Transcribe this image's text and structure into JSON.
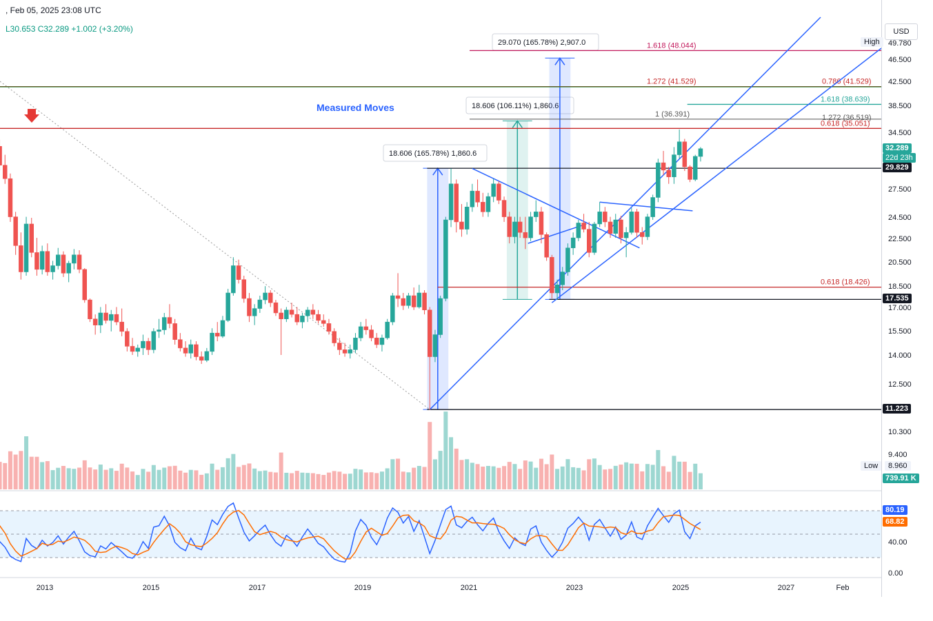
{
  "header": {
    "datetime": ", Feb 05, 2025 23:08 UTC",
    "ohlc": "L30.653  C32.289  +1.002 (+3.20%)"
  },
  "currency_button": "USD",
  "colors": {
    "up": "#26a69a",
    "down": "#ef5350",
    "blue": "#2962ff",
    "red_line": "#c62828",
    "green_line": "#2e7d32",
    "magenta": "#c2185b",
    "teal": "#26a69a",
    "rsi": "#2962ff",
    "rsi_ma": "#ff6d00"
  },
  "chart_data": {
    "type": "candlestick",
    "timeframe": "weekly",
    "title": "Measured Moves",
    "price_axis": {
      "scale": "log",
      "ticks": [
        "49.780",
        "46.500",
        "42.500",
        "38.500",
        "34.500",
        "27.500",
        "24.500",
        "22.500",
        "20.500",
        "18.500",
        "17.000",
        "15.500",
        "14.000",
        "12.500",
        "10.300",
        "9.400"
      ]
    },
    "time_axis": {
      "ticks": [
        "2013",
        "2015",
        "2017",
        "2019",
        "2021",
        "2023",
        "2025",
        "2027",
        "Feb"
      ]
    },
    "price_badges": [
      {
        "label": "32.289",
        "sub": "22d 23h",
        "price": 32.289,
        "color": "#26a69a"
      },
      {
        "label": "29.829",
        "price": 29.829,
        "color": "#131722"
      },
      {
        "label": "17.535",
        "price": 17.535,
        "color": "#131722"
      },
      {
        "label": "11.223",
        "price": 11.223,
        "color": "#131722"
      }
    ],
    "high_label": "High",
    "low_label": "Low",
    "low_value": "8.960",
    "volume_badge": "739.91 K",
    "horizontal_levels": [
      {
        "price": 48.044,
        "label": "1.618 (48.044)",
        "color": "#c2185b",
        "from_year": 2021.0
      },
      {
        "price": 41.529,
        "label": "1.272 (41.529)",
        "label2": "0.786 (41.529)",
        "color": "#c62828",
        "from_year": 2011.3
      },
      {
        "price": 42.1,
        "label": "",
        "color": "#2e7d32",
        "from_year": 2011.3
      },
      {
        "price": 38.639,
        "label": "1.618 (38.639)",
        "color": "#26a69a",
        "from_year": 2025.1
      },
      {
        "price": 36.391,
        "label": "1 (36.391)",
        "label2": "1.272 (36.519)",
        "color": "#555555",
        "from_year": 2021.0
      },
      {
        "price": 35.051,
        "label": "0.618 (35.051)",
        "color": "#c62828",
        "from_year": 2011.3
      },
      {
        "price": 29.829,
        "label": "",
        "color": "#131722",
        "from_year": 2020.2
      },
      {
        "price": 18.426,
        "label": "0.618 (18.426)",
        "color": "#c62828",
        "from_year": 2020.4
      },
      {
        "price": 17.535,
        "label": "",
        "color": "#131722",
        "from_year": 2022.5
      },
      {
        "price": 11.223,
        "label": "",
        "color": "#131722",
        "from_year": 2020.2
      }
    ],
    "measured_moves": [
      {
        "label": "18.606 (165.78%) 1,860.6",
        "x0": 2020.2,
        "x1": 2020.6,
        "from": 11.223,
        "to": 29.829,
        "color": "#2962ff"
      },
      {
        "label": "18.606 (106.11%) 1,860.6",
        "x0": 2021.7,
        "x1": 2022.1,
        "from": 17.535,
        "to": 36.141,
        "color": "#26a69a"
      },
      {
        "label": "29.070 (165.78%) 2,907.0",
        "x0": 2022.5,
        "x1": 2022.9,
        "from": 17.535,
        "to": 46.605,
        "color": "#2962ff"
      }
    ],
    "candles": [
      {
        "t": 2011.35,
        "o": 34.0,
        "h": 35.2,
        "l": 31.5,
        "c": 32.4
      },
      {
        "t": 2011.45,
        "o": 32.4,
        "h": 33.0,
        "l": 29.5,
        "c": 30.2
      },
      {
        "t": 2011.55,
        "o": 30.2,
        "h": 31.0,
        "l": 27.0,
        "c": 28.0
      },
      {
        "t": 2011.65,
        "o": 28.0,
        "h": 29.5,
        "l": 26.0,
        "c": 27.2
      },
      {
        "t": 2011.75,
        "o": 27.2,
        "h": 30.5,
        "l": 26.8,
        "c": 30.0
      },
      {
        "t": 2011.85,
        "o": 30.0,
        "h": 34.0,
        "l": 29.5,
        "c": 33.5
      },
      {
        "t": 2011.95,
        "o": 33.5,
        "h": 35.5,
        "l": 32.5,
        "c": 34.8
      },
      {
        "t": 2012.05,
        "o": 34.8,
        "h": 35.6,
        "l": 32.0,
        "c": 32.6
      },
      {
        "t": 2012.15,
        "o": 32.6,
        "h": 33.5,
        "l": 29.5,
        "c": 30.2
      },
      {
        "t": 2012.25,
        "o": 30.2,
        "h": 31.5,
        "l": 28.0,
        "c": 28.6
      },
      {
        "t": 2012.35,
        "o": 28.6,
        "h": 29.2,
        "l": 24.0,
        "c": 24.5
      },
      {
        "t": 2012.45,
        "o": 24.5,
        "h": 25.0,
        "l": 21.0,
        "c": 21.8
      },
      {
        "t": 2012.55,
        "o": 21.8,
        "h": 23.0,
        "l": 19.0,
        "c": 19.6
      },
      {
        "t": 2012.65,
        "o": 19.6,
        "h": 24.5,
        "l": 19.3,
        "c": 23.8
      },
      {
        "t": 2012.75,
        "o": 23.8,
        "h": 24.4,
        "l": 20.8,
        "c": 21.2
      },
      {
        "t": 2012.85,
        "o": 21.2,
        "h": 22.5,
        "l": 19.3,
        "c": 19.8
      },
      {
        "t": 2012.95,
        "o": 19.8,
        "h": 21.8,
        "l": 19.4,
        "c": 21.3
      },
      {
        "t": 2013.05,
        "o": 21.3,
        "h": 22.0,
        "l": 19.3,
        "c": 19.6
      },
      {
        "t": 2013.15,
        "o": 19.6,
        "h": 20.5,
        "l": 19.0,
        "c": 20.1
      },
      {
        "t": 2013.25,
        "o": 20.1,
        "h": 21.6,
        "l": 19.8,
        "c": 21.0
      },
      {
        "t": 2013.35,
        "o": 21.0,
        "h": 21.3,
        "l": 19.2,
        "c": 19.5
      },
      {
        "t": 2013.45,
        "o": 19.5,
        "h": 20.5,
        "l": 18.8,
        "c": 20.3
      },
      {
        "t": 2013.55,
        "o": 20.3,
        "h": 21.5,
        "l": 19.8,
        "c": 21.0
      },
      {
        "t": 2013.65,
        "o": 21.0,
        "h": 21.4,
        "l": 19.5,
        "c": 19.8
      },
      {
        "t": 2013.75,
        "o": 19.8,
        "h": 19.9,
        "l": 17.3,
        "c": 17.5
      },
      {
        "t": 2013.85,
        "o": 17.5,
        "h": 17.6,
        "l": 16.0,
        "c": 16.2
      },
      {
        "t": 2013.95,
        "o": 16.2,
        "h": 16.5,
        "l": 15.2,
        "c": 15.8
      },
      {
        "t": 2014.05,
        "o": 15.8,
        "h": 17.0,
        "l": 15.3,
        "c": 16.6
      },
      {
        "t": 2014.15,
        "o": 16.6,
        "h": 17.2,
        "l": 15.9,
        "c": 16.1
      },
      {
        "t": 2014.25,
        "o": 16.1,
        "h": 16.8,
        "l": 15.4,
        "c": 16.5
      },
      {
        "t": 2014.35,
        "o": 16.5,
        "h": 17.0,
        "l": 15.8,
        "c": 16.0
      },
      {
        "t": 2014.45,
        "o": 16.0,
        "h": 16.9,
        "l": 15.1,
        "c": 15.4
      },
      {
        "t": 2014.55,
        "o": 15.4,
        "h": 15.6,
        "l": 14.2,
        "c": 14.5
      },
      {
        "t": 2014.65,
        "o": 14.5,
        "h": 15.0,
        "l": 14.0,
        "c": 14.2
      },
      {
        "t": 2014.75,
        "o": 14.2,
        "h": 14.6,
        "l": 13.9,
        "c": 14.4
      },
      {
        "t": 2014.85,
        "o": 14.4,
        "h": 15.2,
        "l": 14.0,
        "c": 14.8
      },
      {
        "t": 2014.95,
        "o": 14.8,
        "h": 15.0,
        "l": 14.0,
        "c": 14.3
      },
      {
        "t": 2015.05,
        "o": 14.3,
        "h": 15.6,
        "l": 14.1,
        "c": 15.4
      },
      {
        "t": 2015.15,
        "o": 15.4,
        "h": 16.2,
        "l": 15.0,
        "c": 15.5
      },
      {
        "t": 2015.25,
        "o": 15.5,
        "h": 16.6,
        "l": 15.2,
        "c": 16.3
      },
      {
        "t": 2015.35,
        "o": 16.3,
        "h": 17.2,
        "l": 15.6,
        "c": 15.9
      },
      {
        "t": 2015.45,
        "o": 15.9,
        "h": 16.2,
        "l": 14.6,
        "c": 14.9
      },
      {
        "t": 2015.55,
        "o": 14.9,
        "h": 15.3,
        "l": 14.2,
        "c": 14.4
      },
      {
        "t": 2015.65,
        "o": 14.4,
        "h": 14.8,
        "l": 13.9,
        "c": 14.1
      },
      {
        "t": 2015.75,
        "o": 14.1,
        "h": 14.9,
        "l": 13.8,
        "c": 14.6
      },
      {
        "t": 2015.85,
        "o": 14.6,
        "h": 14.8,
        "l": 13.7,
        "c": 13.9
      },
      {
        "t": 2015.95,
        "o": 13.9,
        "h": 14.2,
        "l": 13.5,
        "c": 13.7
      },
      {
        "t": 2016.05,
        "o": 13.7,
        "h": 14.4,
        "l": 13.6,
        "c": 14.2
      },
      {
        "t": 2016.15,
        "o": 14.2,
        "h": 15.6,
        "l": 14.0,
        "c": 15.3
      },
      {
        "t": 2016.25,
        "o": 15.3,
        "h": 16.0,
        "l": 14.8,
        "c": 15.1
      },
      {
        "t": 2016.35,
        "o": 15.1,
        "h": 16.4,
        "l": 15.0,
        "c": 16.1
      },
      {
        "t": 2016.45,
        "o": 16.1,
        "h": 18.3,
        "l": 16.0,
        "c": 18.0
      },
      {
        "t": 2016.55,
        "o": 18.0,
        "h": 20.8,
        "l": 17.8,
        "c": 20.1
      },
      {
        "t": 2016.65,
        "o": 20.1,
        "h": 20.6,
        "l": 18.7,
        "c": 19.0
      },
      {
        "t": 2016.75,
        "o": 19.0,
        "h": 19.3,
        "l": 17.3,
        "c": 17.6
      },
      {
        "t": 2016.85,
        "o": 17.6,
        "h": 18.0,
        "l": 16.0,
        "c": 16.4
      },
      {
        "t": 2016.95,
        "o": 16.4,
        "h": 17.2,
        "l": 15.8,
        "c": 16.9
      },
      {
        "t": 2017.05,
        "o": 16.9,
        "h": 17.8,
        "l": 16.6,
        "c": 17.5
      },
      {
        "t": 2017.15,
        "o": 17.5,
        "h": 18.5,
        "l": 17.2,
        "c": 18.0
      },
      {
        "t": 2017.25,
        "o": 18.0,
        "h": 18.2,
        "l": 17.0,
        "c": 17.3
      },
      {
        "t": 2017.35,
        "o": 17.3,
        "h": 17.5,
        "l": 16.4,
        "c": 16.6
      },
      {
        "t": 2017.45,
        "o": 16.6,
        "h": 16.9,
        "l": 14.0,
        "c": 16.2
      },
      {
        "t": 2017.55,
        "o": 16.2,
        "h": 17.0,
        "l": 16.0,
        "c": 16.8
      },
      {
        "t": 2017.65,
        "o": 16.8,
        "h": 17.3,
        "l": 16.3,
        "c": 16.5
      },
      {
        "t": 2017.75,
        "o": 16.5,
        "h": 17.0,
        "l": 15.8,
        "c": 16.0
      },
      {
        "t": 2017.85,
        "o": 16.0,
        "h": 16.6,
        "l": 15.6,
        "c": 16.4
      },
      {
        "t": 2017.95,
        "o": 16.4,
        "h": 17.0,
        "l": 16.0,
        "c": 16.8
      },
      {
        "t": 2018.05,
        "o": 16.8,
        "h": 17.2,
        "l": 16.2,
        "c": 16.5
      },
      {
        "t": 2018.15,
        "o": 16.5,
        "h": 16.8,
        "l": 15.9,
        "c": 16.1
      },
      {
        "t": 2018.25,
        "o": 16.1,
        "h": 16.5,
        "l": 15.7,
        "c": 15.9
      },
      {
        "t": 2018.35,
        "o": 15.9,
        "h": 16.2,
        "l": 15.2,
        "c": 15.4
      },
      {
        "t": 2018.45,
        "o": 15.4,
        "h": 15.6,
        "l": 14.5,
        "c": 14.7
      },
      {
        "t": 2018.55,
        "o": 14.7,
        "h": 15.0,
        "l": 14.0,
        "c": 14.3
      },
      {
        "t": 2018.65,
        "o": 14.3,
        "h": 14.7,
        "l": 13.9,
        "c": 14.1
      },
      {
        "t": 2018.75,
        "o": 14.1,
        "h": 14.6,
        "l": 13.8,
        "c": 14.3
      },
      {
        "t": 2018.85,
        "o": 14.3,
        "h": 15.3,
        "l": 14.1,
        "c": 15.0
      },
      {
        "t": 2018.95,
        "o": 15.0,
        "h": 16.0,
        "l": 14.8,
        "c": 15.7
      },
      {
        "t": 2019.05,
        "o": 15.7,
        "h": 16.2,
        "l": 15.2,
        "c": 15.5
      },
      {
        "t": 2019.15,
        "o": 15.5,
        "h": 15.8,
        "l": 14.8,
        "c": 15.0
      },
      {
        "t": 2019.25,
        "o": 15.0,
        "h": 15.3,
        "l": 14.4,
        "c": 14.6
      },
      {
        "t": 2019.35,
        "o": 14.6,
        "h": 15.2,
        "l": 14.2,
        "c": 15.0
      },
      {
        "t": 2019.45,
        "o": 15.0,
        "h": 16.2,
        "l": 14.9,
        "c": 16.0
      },
      {
        "t": 2019.55,
        "o": 16.0,
        "h": 18.0,
        "l": 15.8,
        "c": 17.8
      },
      {
        "t": 2019.65,
        "o": 17.8,
        "h": 19.5,
        "l": 17.0,
        "c": 17.6
      },
      {
        "t": 2019.75,
        "o": 17.6,
        "h": 18.0,
        "l": 16.8,
        "c": 17.1
      },
      {
        "t": 2019.85,
        "o": 17.1,
        "h": 18.0,
        "l": 16.9,
        "c": 17.8
      },
      {
        "t": 2019.95,
        "o": 17.8,
        "h": 18.4,
        "l": 16.8,
        "c": 17.0
      },
      {
        "t": 2020.05,
        "o": 17.0,
        "h": 18.6,
        "l": 16.9,
        "c": 18.0
      },
      {
        "t": 2020.15,
        "o": 18.0,
        "h": 18.2,
        "l": 16.5,
        "c": 16.8
      },
      {
        "t": 2020.25,
        "o": 16.8,
        "h": 17.0,
        "l": 11.2,
        "c": 13.9
      },
      {
        "t": 2020.35,
        "o": 13.9,
        "h": 15.5,
        "l": 13.6,
        "c": 15.2
      },
      {
        "t": 2020.45,
        "o": 15.2,
        "h": 17.8,
        "l": 15.0,
        "c": 17.6
      },
      {
        "t": 2020.55,
        "o": 17.6,
        "h": 24.5,
        "l": 17.4,
        "c": 24.2
      },
      {
        "t": 2020.65,
        "o": 24.2,
        "h": 29.8,
        "l": 23.5,
        "c": 28.0
      },
      {
        "t": 2020.75,
        "o": 28.0,
        "h": 28.5,
        "l": 23.0,
        "c": 24.0
      },
      {
        "t": 2020.85,
        "o": 24.0,
        "h": 25.8,
        "l": 22.6,
        "c": 23.3
      },
      {
        "t": 2020.95,
        "o": 23.3,
        "h": 26.0,
        "l": 22.8,
        "c": 25.5
      },
      {
        "t": 2021.05,
        "o": 25.5,
        "h": 28.0,
        "l": 25.0,
        "c": 27.2
      },
      {
        "t": 2021.15,
        "o": 27.2,
        "h": 28.5,
        "l": 25.5,
        "c": 26.0
      },
      {
        "t": 2021.25,
        "o": 26.0,
        "h": 27.0,
        "l": 24.5,
        "c": 25.0
      },
      {
        "t": 2021.35,
        "o": 25.0,
        "h": 27.0,
        "l": 24.5,
        "c": 26.6
      },
      {
        "t": 2021.45,
        "o": 26.6,
        "h": 28.6,
        "l": 26.0,
        "c": 28.0
      },
      {
        "t": 2021.55,
        "o": 28.0,
        "h": 28.3,
        "l": 25.8,
        "c": 26.2
      },
      {
        "t": 2021.65,
        "o": 26.2,
        "h": 26.6,
        "l": 24.0,
        "c": 24.5
      },
      {
        "t": 2021.75,
        "o": 24.5,
        "h": 25.0,
        "l": 22.0,
        "c": 22.6
      },
      {
        "t": 2021.85,
        "o": 22.6,
        "h": 24.5,
        "l": 22.0,
        "c": 24.0
      },
      {
        "t": 2021.95,
        "o": 24.0,
        "h": 24.5,
        "l": 22.5,
        "c": 23.0
      },
      {
        "t": 2022.05,
        "o": 23.0,
        "h": 24.5,
        "l": 21.5,
        "c": 22.5
      },
      {
        "t": 2022.15,
        "o": 22.5,
        "h": 25.0,
        "l": 22.2,
        "c": 24.5
      },
      {
        "t": 2022.25,
        "o": 24.5,
        "h": 26.2,
        "l": 24.0,
        "c": 25.0
      },
      {
        "t": 2022.35,
        "o": 25.0,
        "h": 25.5,
        "l": 22.0,
        "c": 22.8
      },
      {
        "t": 2022.45,
        "o": 22.8,
        "h": 23.0,
        "l": 20.5,
        "c": 20.8
      },
      {
        "t": 2022.55,
        "o": 20.8,
        "h": 21.0,
        "l": 17.6,
        "c": 18.0
      },
      {
        "t": 2022.65,
        "o": 18.0,
        "h": 19.0,
        "l": 17.5,
        "c": 18.6
      },
      {
        "t": 2022.75,
        "o": 18.6,
        "h": 20.0,
        "l": 18.2,
        "c": 19.6
      },
      {
        "t": 2022.85,
        "o": 19.6,
        "h": 22.0,
        "l": 19.3,
        "c": 21.6
      },
      {
        "t": 2022.95,
        "o": 21.6,
        "h": 23.0,
        "l": 21.0,
        "c": 22.5
      },
      {
        "t": 2023.05,
        "o": 22.5,
        "h": 24.2,
        "l": 22.2,
        "c": 23.9
      },
      {
        "t": 2023.15,
        "o": 23.9,
        "h": 24.8,
        "l": 23.0,
        "c": 23.3
      },
      {
        "t": 2023.25,
        "o": 23.3,
        "h": 24.0,
        "l": 20.8,
        "c": 21.2
      },
      {
        "t": 2023.35,
        "o": 21.2,
        "h": 24.0,
        "l": 21.0,
        "c": 23.8
      },
      {
        "t": 2023.45,
        "o": 23.8,
        "h": 26.0,
        "l": 23.5,
        "c": 25.0
      },
      {
        "t": 2023.55,
        "o": 25.0,
        "h": 25.5,
        "l": 23.5,
        "c": 24.0
      },
      {
        "t": 2023.65,
        "o": 24.0,
        "h": 24.5,
        "l": 22.5,
        "c": 22.9
      },
      {
        "t": 2023.75,
        "o": 22.9,
        "h": 24.8,
        "l": 22.5,
        "c": 24.2
      },
      {
        "t": 2023.85,
        "o": 24.2,
        "h": 24.6,
        "l": 22.0,
        "c": 22.5
      },
      {
        "t": 2023.95,
        "o": 22.5,
        "h": 23.5,
        "l": 20.8,
        "c": 23.0
      },
      {
        "t": 2024.05,
        "o": 23.0,
        "h": 25.4,
        "l": 22.8,
        "c": 25.0
      },
      {
        "t": 2024.15,
        "o": 25.0,
        "h": 25.3,
        "l": 22.5,
        "c": 23.0
      },
      {
        "t": 2024.25,
        "o": 23.0,
        "h": 23.5,
        "l": 21.9,
        "c": 22.6
      },
      {
        "t": 2024.35,
        "o": 22.6,
        "h": 24.8,
        "l": 22.3,
        "c": 24.5
      },
      {
        "t": 2024.45,
        "o": 24.5,
        "h": 26.8,
        "l": 24.2,
        "c": 26.5
      },
      {
        "t": 2024.55,
        "o": 26.5,
        "h": 31.0,
        "l": 26.0,
        "c": 30.5
      },
      {
        "t": 2024.65,
        "o": 30.5,
        "h": 32.0,
        "l": 29.0,
        "c": 29.6
      },
      {
        "t": 2024.75,
        "o": 29.6,
        "h": 30.0,
        "l": 28.0,
        "c": 28.8
      },
      {
        "t": 2024.85,
        "o": 28.8,
        "h": 32.5,
        "l": 28.0,
        "c": 31.5
      },
      {
        "t": 2024.95,
        "o": 31.5,
        "h": 34.9,
        "l": 31.0,
        "c": 33.2
      },
      {
        "t": 2025.05,
        "o": 33.2,
        "h": 33.6,
        "l": 29.5,
        "c": 30.0
      },
      {
        "t": 2025.15,
        "o": 30.0,
        "h": 30.2,
        "l": 28.2,
        "c": 28.5
      },
      {
        "t": 2025.25,
        "o": 28.5,
        "h": 31.5,
        "l": 28.3,
        "c": 31.3
      },
      {
        "t": 2025.35,
        "o": 31.287,
        "h": 32.5,
        "l": 30.653,
        "c": 32.289
      }
    ],
    "rsi": {
      "axis_ticks": [
        "40.00",
        "0.00"
      ],
      "value_badge": "80.19",
      "ma_badge": "68.82",
      "levels": [
        70,
        50,
        30
      ]
    }
  }
}
